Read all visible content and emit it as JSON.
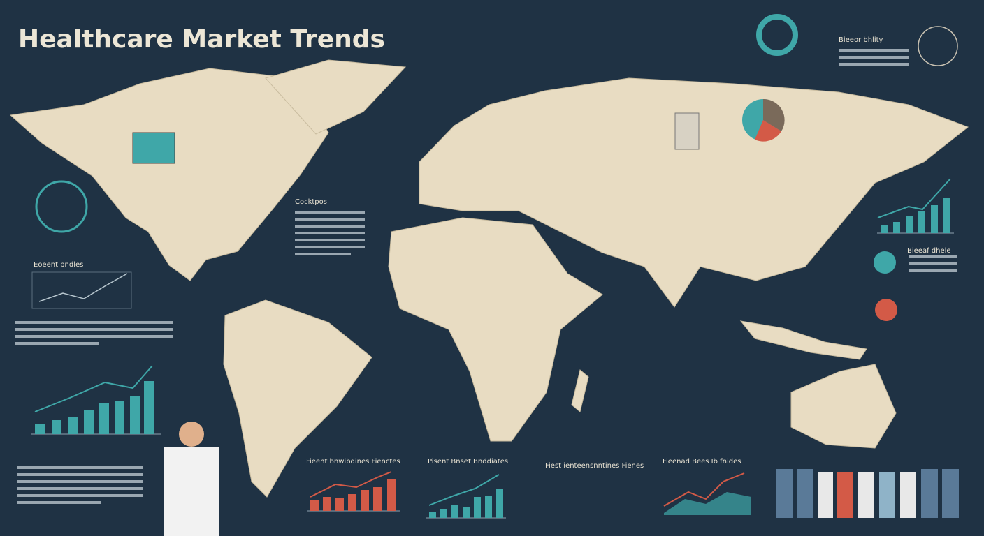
{
  "header": {
    "title": "Healthcare Market Trends"
  },
  "panels": [
    {
      "label": "Bieeor bhlity"
    },
    {
      "label": "Cocktpos"
    },
    {
      "label": "Eoeent bndles"
    },
    {
      "label": "Fieent bnwibdines Fienctes"
    },
    {
      "label": "Pisent Bnset Bnddiates"
    },
    {
      "label": "Fiest ienteensnntines Fienes"
    },
    {
      "label": "Fieenad Bees Ib fnides"
    },
    {
      "label": "Bieeaf dhele"
    }
  ]
}
